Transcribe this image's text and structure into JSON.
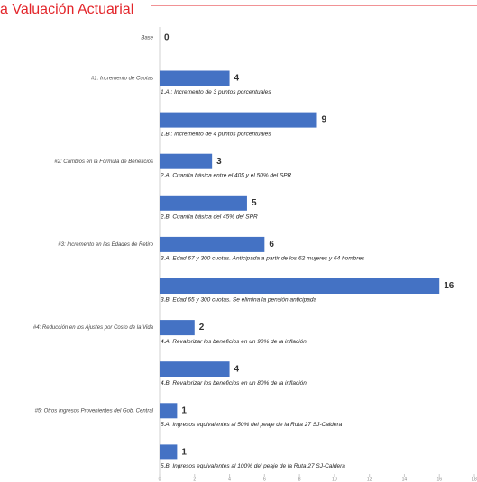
{
  "chart_data": {
    "type": "hbar",
    "title": "a Valuación Actuarial",
    "categories": [
      "Base",
      "#1: Incremento de Cuotas",
      null,
      "#2: Cambios en la Fórmula de Beneficios",
      null,
      "#3: Incremento en las Edades de Retiro",
      null,
      "#4: Reducción en los Ajustes por Costo de la Vida",
      null,
      "#5: Otros Ingresos Provenientes del Gob. Central",
      null
    ],
    "bar_labels": [
      null,
      "1.A.: Incremento de 3 puntos porcentuales",
      "1.B.: Incremento de 4 puntos porcentuales",
      "2.A. Cuantía básica entre el 40$ y el 50% del SPR",
      "2.B. Cuantía básica del 45% del SPR",
      "3.A. Edad 67 y 300 cuotas.  Anticipada a partir de los 62 mujeres y 64 hombres",
      "3.B. Edad 65 y 300 cuotas.  Se elimina la pensión anticipada",
      "4.A. Revalorizar los beneficios en un 90% de la inflación",
      "4.B. Revalorizar los beneficios en un 80% de la inflación",
      "5.A. Ingresos equivalentes al 50% del peaje de la Ruta 27 SJ-Caldera",
      "5.B. Ingresos equivalentes al 100% del peaje de la Ruta 27 SJ-Caldera"
    ],
    "values": [
      0,
      4,
      9,
      3,
      5,
      6,
      16,
      2,
      4,
      1,
      1
    ],
    "color": "#4472c4",
    "xlim": [
      0,
      18
    ],
    "xticks": [
      0,
      2,
      4,
      6,
      8,
      10,
      12,
      14,
      16,
      18
    ]
  }
}
